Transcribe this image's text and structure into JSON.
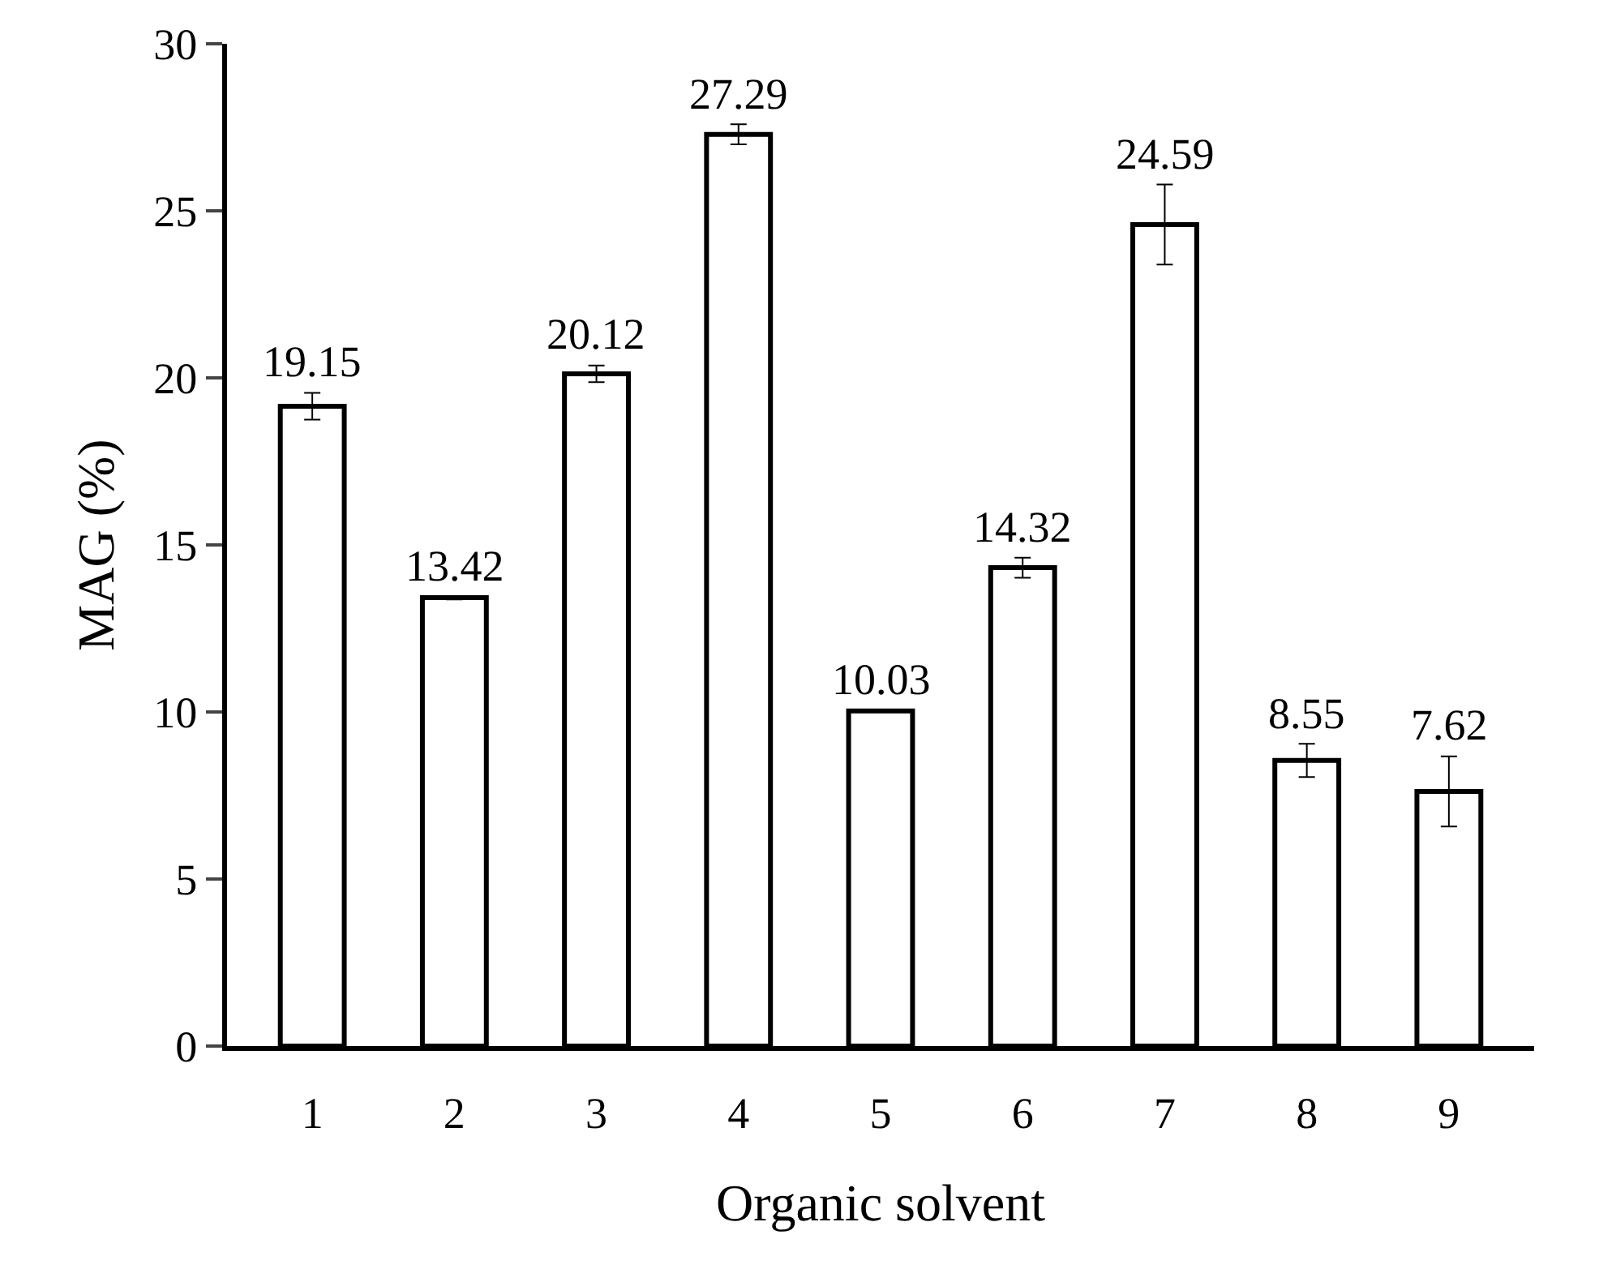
{
  "chart_data": {
    "type": "bar",
    "xlabel": "Organic solvent",
    "ylabel": "MAG (%)",
    "categories": [
      "1",
      "2",
      "3",
      "4",
      "5",
      "6",
      "7",
      "8",
      "9"
    ],
    "values": [
      19.15,
      13.42,
      20.12,
      27.29,
      10.03,
      14.32,
      24.59,
      8.55,
      7.62
    ],
    "errors": [
      0.4,
      0.05,
      0.25,
      0.3,
      null,
      0.3,
      1.2,
      0.5,
      1.05
    ],
    "color": "#ffffff",
    "data_labels": true,
    "ylim": [
      0,
      30
    ],
    "yticks": [
      0,
      5,
      10,
      15,
      20,
      25,
      30
    ],
    "legend": false
  }
}
